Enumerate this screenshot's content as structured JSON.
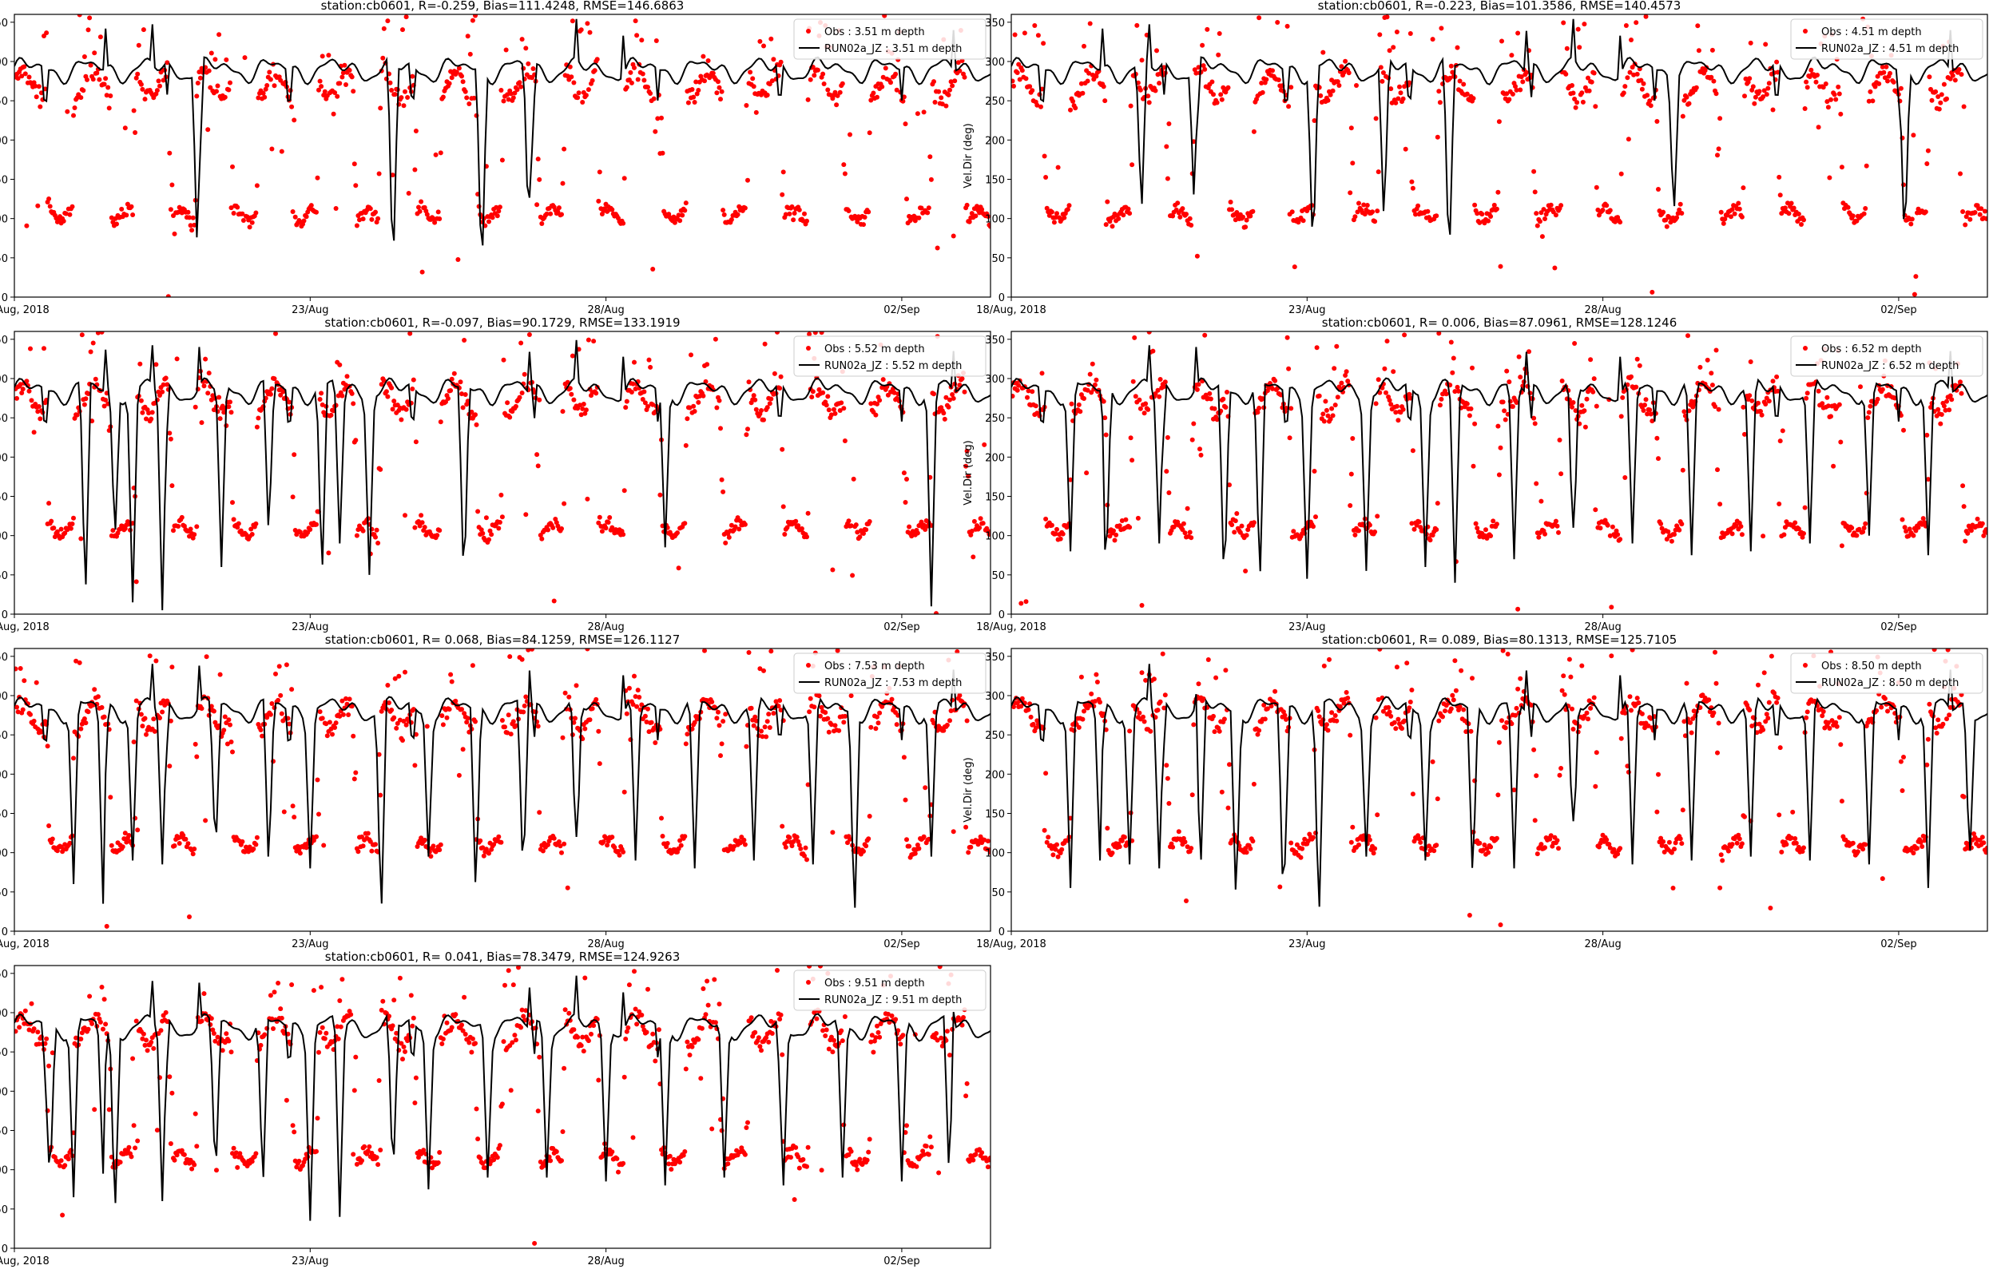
{
  "figure": {
    "xticks": [
      "18/Aug, 2018",
      "23/Aug",
      "28/Aug",
      "02/Sep"
    ],
    "yticks": [
      "0",
      "50",
      "100",
      "150",
      "200",
      "250",
      "300",
      "350"
    ]
  },
  "chart_data": [
    {
      "type": "scatter",
      "title": "station:cb0601, R=-0.259, Bias=111.4248, RMSE=146.6863",
      "xlabel": "",
      "ylabel": "",
      "ylim": [
        0,
        360
      ],
      "xlim_days": [
        0,
        16.5
      ],
      "legend": {
        "placement": "top-right",
        "obs": "Obs : 3.51 m depth",
        "model": "RUN02a_JZ : 3.51 m depth"
      },
      "series": [
        {
          "name": "Obs : 3.51 m depth",
          "color": "#ff0000",
          "kind": "points",
          "cluster_low": 105,
          "cluster_high": 270
        },
        {
          "name": "RUN02a_JZ : 3.51 m depth",
          "color": "#000000",
          "kind": "line",
          "base": 290,
          "dips": [
            [
              3.1,
              28
            ],
            [
              6.4,
              20
            ],
            [
              7.9,
              15
            ],
            [
              8.7,
              55
            ]
          ]
        }
      ]
    },
    {
      "type": "scatter",
      "title": "station:cb0601, R=-0.223, Bias=101.3586, RMSE=140.4573",
      "xlabel": "",
      "ylabel": "Vel.Dir (deg)",
      "ylim": [
        0,
        360
      ],
      "xlim_days": [
        0,
        16.5
      ],
      "legend": {
        "placement": "top-right",
        "obs": "Obs : 4.51 m depth",
        "model": "RUN02a_JZ : 4.51 m depth"
      },
      "series": [
        {
          "name": "Obs : 4.51 m depth",
          "color": "#ff0000",
          "kind": "points",
          "cluster_low": 105,
          "cluster_high": 270
        },
        {
          "name": "RUN02a_JZ : 4.51 m depth",
          "color": "#000000",
          "kind": "line",
          "base": 290,
          "dips": [
            [
              2.2,
              100
            ],
            [
              3.1,
              95
            ],
            [
              5.1,
              45
            ],
            [
              6.3,
              90
            ],
            [
              7.4,
              30
            ],
            [
              11.2,
              100
            ],
            [
              15.1,
              55
            ]
          ]
        }
      ]
    },
    {
      "type": "scatter",
      "title": "station:cb0601, R=-0.097, Bias=90.1729, RMSE=133.1919",
      "xlabel": "",
      "ylabel": "",
      "ylim": [
        0,
        360
      ],
      "xlim_days": [
        0,
        16.5
      ],
      "legend": {
        "placement": "top-right",
        "obs": "Obs : 5.52 m depth",
        "model": "RUN02a_JZ : 5.52 m depth"
      },
      "series": [
        {
          "name": "Obs : 5.52 m depth",
          "color": "#ff0000",
          "kind": "points",
          "cluster_low": 108,
          "cluster_high": 275
        },
        {
          "name": "RUN02a_JZ : 5.52 m depth",
          "color": "#000000",
          "kind": "line",
          "base": 285,
          "dips": [
            [
              1.2,
              12
            ],
            [
              1.7,
              90
            ],
            [
              2.0,
              15
            ],
            [
              2.5,
              5
            ],
            [
              3.5,
              60
            ],
            [
              4.3,
              95
            ],
            [
              5.2,
              40
            ],
            [
              5.5,
              90
            ],
            [
              6.0,
              50
            ],
            [
              7.6,
              25
            ],
            [
              11.0,
              85
            ],
            [
              15.5,
              10
            ]
          ]
        }
      ]
    },
    {
      "type": "scatter",
      "title": "station:cb0601, R= 0.006, Bias=87.0961, RMSE=128.1246",
      "xlabel": "",
      "ylabel": "Vel.Dir (deg)",
      "ylim": [
        0,
        360
      ],
      "xlim_days": [
        0,
        16.5
      ],
      "legend": {
        "placement": "top-right",
        "obs": "Obs : 6.52 m depth",
        "model": "RUN02a_JZ : 6.52 m depth"
      },
      "series": [
        {
          "name": "Obs : 6.52 m depth",
          "color": "#ff0000",
          "kind": "points",
          "cluster_low": 108,
          "cluster_high": 275
        },
        {
          "name": "RUN02a_JZ : 6.52 m depth",
          "color": "#000000",
          "kind": "line",
          "base": 285,
          "dips": [
            [
              1.0,
              80
            ],
            [
              1.6,
              35
            ],
            [
              2.5,
              90
            ],
            [
              3.6,
              20
            ],
            [
              4.2,
              30
            ],
            [
              5.0,
              45
            ],
            [
              6.0,
              55
            ],
            [
              7.0,
              60
            ],
            [
              7.5,
              40
            ],
            [
              8.5,
              70
            ],
            [
              9.5,
              60
            ],
            [
              10.5,
              90
            ],
            [
              11.5,
              75
            ],
            [
              12.5,
              80
            ],
            [
              13.5,
              90
            ],
            [
              14.5,
              100
            ],
            [
              15.5,
              75
            ]
          ]
        }
      ]
    },
    {
      "type": "scatter",
      "title": "station:cb0601, R= 0.068, Bias=84.1259, RMSE=126.1127",
      "xlabel": "",
      "ylabel": "",
      "ylim": [
        0,
        360
      ],
      "xlim_days": [
        0,
        16.5
      ],
      "legend": {
        "placement": "top-right",
        "obs": "Obs : 7.53 m depth",
        "model": "RUN02a_JZ : 7.53 m depth"
      },
      "series": [
        {
          "name": "Obs : 7.53 m depth",
          "color": "#ff0000",
          "kind": "points",
          "cluster_low": 110,
          "cluster_high": 275
        },
        {
          "name": "RUN02a_JZ : 7.53 m depth",
          "color": "#000000",
          "kind": "line",
          "base": 283,
          "dips": [
            [
              1.0,
              60
            ],
            [
              1.5,
              35
            ],
            [
              2.0,
              90
            ],
            [
              2.5,
              85
            ],
            [
              3.4,
              90
            ],
            [
              4.3,
              75
            ],
            [
              5.0,
              80
            ],
            [
              6.2,
              10
            ],
            [
              7.0,
              95
            ],
            [
              7.8,
              40
            ],
            [
              8.6,
              60
            ],
            [
              9.5,
              70
            ],
            [
              10.5,
              90
            ],
            [
              11.5,
              80
            ],
            [
              12.5,
              90
            ],
            [
              13.5,
              85
            ],
            [
              14.2,
              5
            ],
            [
              15.5,
              95
            ]
          ]
        }
      ]
    },
    {
      "type": "scatter",
      "title": "station:cb0601, R= 0.089, Bias=80.1313, RMSE=125.7105",
      "xlabel": "",
      "ylabel": "Vel.Dir (deg)",
      "ylim": [
        0,
        360
      ],
      "xlim_days": [
        0,
        16.5
      ],
      "legend": {
        "placement": "top-right",
        "obs": "Obs : 8.50 m depth",
        "model": "RUN02a_JZ : 8.50 m depth"
      },
      "series": [
        {
          "name": "Obs : 8.50 m depth",
          "color": "#ff0000",
          "kind": "points",
          "cluster_low": 110,
          "cluster_high": 278
        },
        {
          "name": "RUN02a_JZ : 8.50 m depth",
          "color": "#000000",
          "kind": "line",
          "base": 283,
          "dips": [
            [
              1.0,
              55
            ],
            [
              1.5,
              90
            ],
            [
              2.0,
              85
            ],
            [
              2.5,
              80
            ],
            [
              3.2,
              70
            ],
            [
              3.8,
              30
            ],
            [
              4.6,
              25
            ],
            [
              5.2,
              5
            ],
            [
              6.0,
              95
            ],
            [
              7.0,
              90
            ],
            [
              7.8,
              60
            ],
            [
              8.5,
              80
            ],
            [
              9.5,
              90
            ],
            [
              10.5,
              85
            ],
            [
              11.5,
              90
            ],
            [
              12.5,
              95
            ],
            [
              13.5,
              90
            ],
            [
              14.5,
              85
            ],
            [
              15.5,
              55
            ],
            [
              16.2,
              85
            ]
          ]
        }
      ]
    },
    {
      "type": "scatter",
      "title": "station:cb0601, R= 0.041, Bias=78.3479, RMSE=124.9263",
      "xlabel": "",
      "ylabel": "",
      "ylim": [
        0,
        360
      ],
      "xlim_days": [
        0,
        16.5
      ],
      "legend": {
        "placement": "top-right",
        "obs": "Obs : 9.51 m depth",
        "model": "RUN02a_JZ : 9.51 m depth"
      },
      "series": [
        {
          "name": "Obs : 9.51 m depth",
          "color": "#ff0000",
          "kind": "points",
          "cluster_low": 115,
          "cluster_high": 278
        },
        {
          "name": "RUN02a_JZ : 9.51 m depth",
          "color": "#000000",
          "kind": "line",
          "base": 283,
          "dips": [
            [
              0.6,
              70
            ],
            [
              1.0,
              65
            ],
            [
              1.5,
              95
            ],
            [
              1.7,
              35
            ],
            [
              2.5,
              60
            ],
            [
              3.4,
              80
            ],
            [
              4.2,
              70
            ],
            [
              5.0,
              35
            ],
            [
              5.5,
              40
            ],
            [
              6.4,
              80
            ],
            [
              7.0,
              75
            ],
            [
              8.0,
              90
            ],
            [
              9.0,
              90
            ],
            [
              10.0,
              85
            ],
            [
              11.0,
              80
            ],
            [
              12.0,
              90
            ],
            [
              13.0,
              80
            ],
            [
              14.0,
              90
            ],
            [
              15.0,
              85
            ],
            [
              15.8,
              90
            ]
          ]
        }
      ]
    }
  ]
}
